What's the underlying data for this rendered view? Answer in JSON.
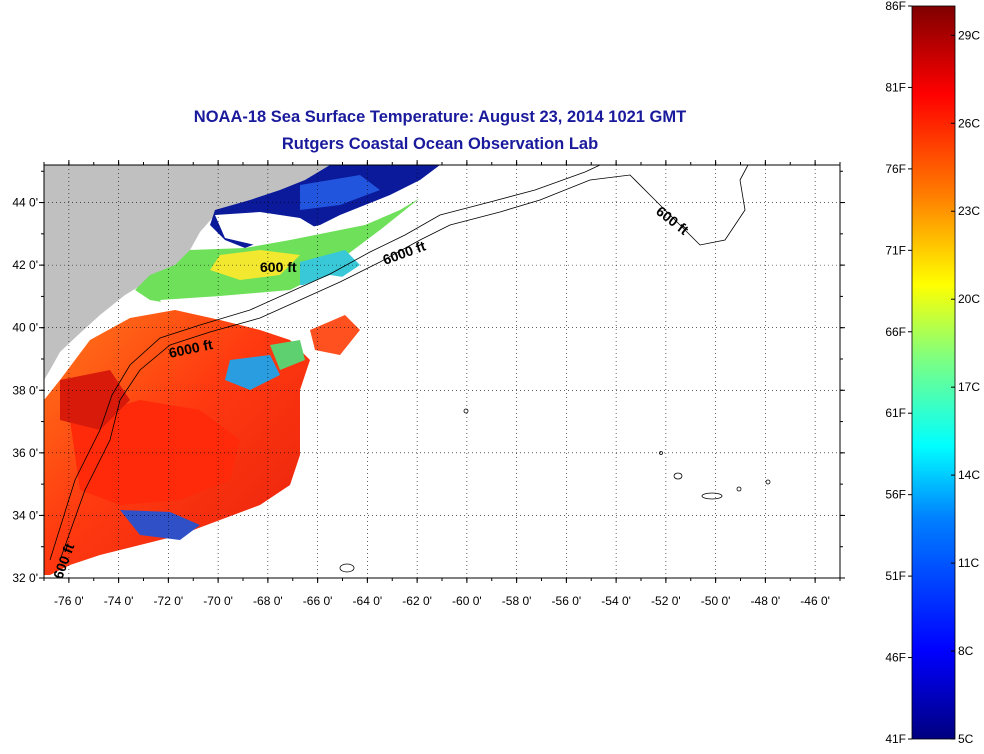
{
  "title": {
    "line1": "NOAA-18 Sea Surface Temperature:  August 23, 2014 1021 GMT",
    "line2": "Rutgers Coastal Ocean Observation Lab"
  },
  "map": {
    "lat_ticks": [
      "44 0'",
      "42 0'",
      "40 0'",
      "38 0'",
      "36 0'",
      "34 0'",
      "32 0'"
    ],
    "lon_ticks": [
      "-76 0'",
      "-74 0'",
      "-72 0'",
      "-70 0'",
      "-68 0'",
      "-66 0'",
      "-64 0'",
      "-62 0'",
      "-60 0'",
      "-58 0'",
      "-56 0'",
      "-54 0'",
      "-52 0'",
      "-50 0'",
      "-48 0'",
      "-46 0'"
    ],
    "lat_range": [
      32,
      45.2
    ],
    "lon_range": [
      -77,
      -45
    ],
    "contour_labels": [
      "600 ft",
      "6000 ft",
      "6000 ft",
      "600 ft",
      "600 ft"
    ],
    "colors": {
      "land": "#c0c0c0",
      "cloud": "#ffffff"
    }
  },
  "colorbar": {
    "fahrenheit_labels": [
      "86F",
      "81F",
      "76F",
      "71F",
      "66F",
      "61F",
      "56F",
      "51F",
      "46F",
      "41F"
    ],
    "celsius_labels": [
      "29C",
      "26C",
      "23C",
      "20C",
      "17C",
      "14C",
      "11C",
      "8C",
      "5C"
    ],
    "range_c": [
      5,
      30
    ],
    "gradient_colors": [
      "#00007f",
      "#0000ff",
      "#007fff",
      "#00ffff",
      "#7fff7f",
      "#ffff00",
      "#ff7f00",
      "#ff0000",
      "#7f0000"
    ]
  }
}
